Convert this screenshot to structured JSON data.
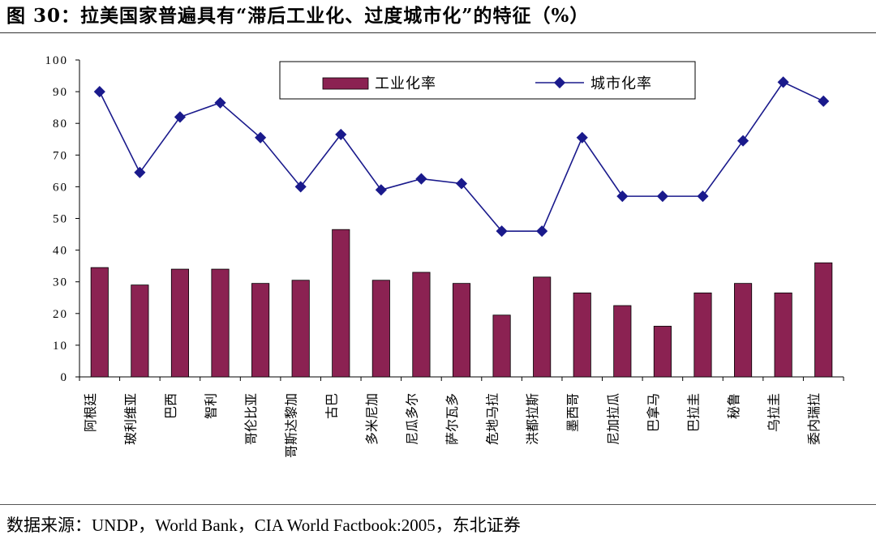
{
  "figure": {
    "title": "图 30：拉美国家普遍具有“滞后工业化、过度城市化”的特征（%）",
    "source": "数据来源：UNDP，World Bank，CIA World Factbook:2005，东北证券"
  },
  "chart_data": {
    "type": "bar",
    "categories": [
      "阿根廷",
      "玻利维亚",
      "巴西",
      "智利",
      "哥伦比亚",
      "哥斯达黎加",
      "古巴",
      "多米尼加",
      "尼瓜多尔",
      "萨尔瓦多",
      "危地马拉",
      "洪都拉斯",
      "墨西哥",
      "尼加拉瓜",
      "巴拿马",
      "巴拉圭",
      "秘鲁",
      "乌拉圭",
      "委内瑞拉"
    ],
    "series": [
      {
        "name": "工业化率",
        "type": "bar",
        "color": "#8B2252",
        "values": [
          34.5,
          29,
          34,
          34,
          29.5,
          30.5,
          46.5,
          30.5,
          33,
          29.5,
          19.5,
          31.5,
          26.5,
          22.5,
          16,
          26.5,
          29.5,
          26.5,
          36
        ]
      },
      {
        "name": "城市化率",
        "type": "line",
        "color": "#1a1a8c",
        "values": [
          90,
          64.5,
          82,
          86.5,
          75.5,
          60,
          76.5,
          59,
          62.5,
          61,
          46,
          46,
          75.5,
          57,
          57,
          57,
          74.5,
          93,
          87
        ]
      }
    ],
    "ylim": [
      0,
      100
    ],
    "yticks": [
      "0",
      "10",
      "20",
      "30",
      "40",
      "50",
      "60",
      "70",
      "80",
      "90",
      "100"
    ],
    "legend_position": "top-center",
    "grid": false
  }
}
